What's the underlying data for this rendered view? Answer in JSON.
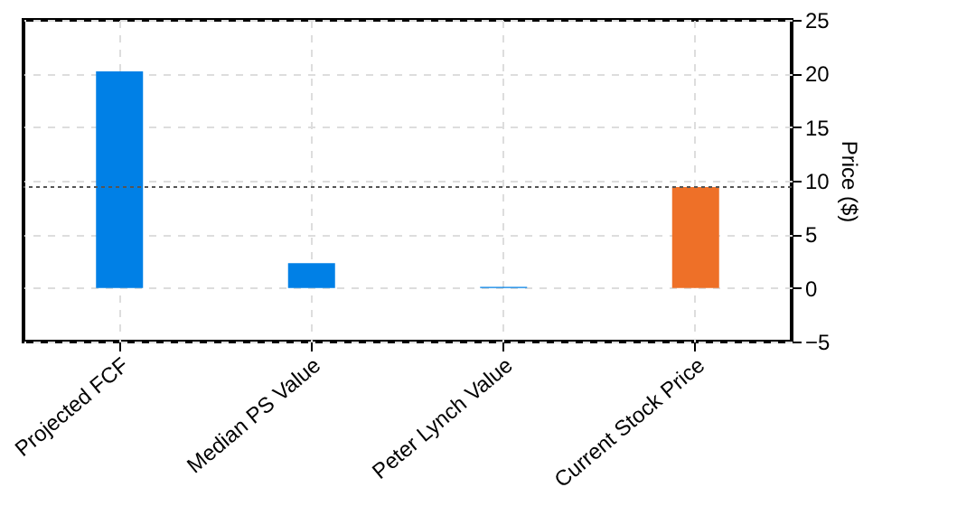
{
  "chart_data": {
    "type": "bar",
    "ylabel": "Price ($)",
    "categories": [
      "Projected FCF",
      "Median PS Value",
      "Peter Lynch Value",
      "Current Stock Price"
    ],
    "values": [
      20.2,
      2.3,
      0.1,
      9.4
    ],
    "colors": [
      "#0080e6",
      "#0080e6",
      "#0080e6",
      "#ee7028"
    ],
    "ylim": [
      -5,
      25
    ],
    "yticks": [
      -5,
      0,
      5,
      10,
      15,
      20,
      25
    ],
    "grid": true,
    "ref_lines": [
      {
        "axis": "y",
        "value": 9.4,
        "color": "#555555",
        "line_style": "dotted"
      }
    ]
  }
}
